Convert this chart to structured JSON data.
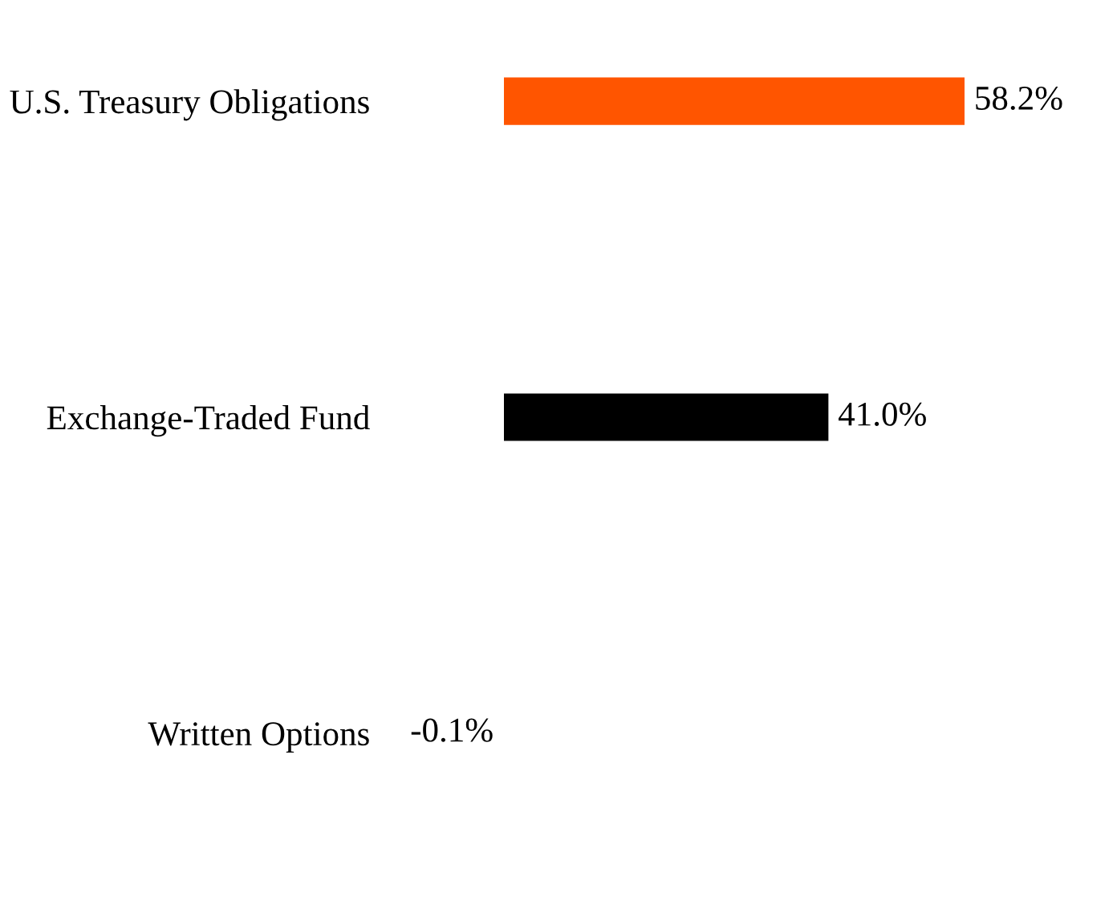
{
  "chart_data": {
    "type": "bar",
    "orientation": "horizontal",
    "categories": [
      "U.S. Treasury Obligations",
      "Exchange-Traded Fund",
      "Written Options"
    ],
    "values": [
      58.2,
      41.0,
      -0.1
    ],
    "colors": [
      "#ff5500",
      "#000000",
      "#ff5500"
    ],
    "value_labels": [
      "58.2%",
      "41.0%",
      "-0.1%"
    ],
    "grid": false,
    "legend": false
  }
}
